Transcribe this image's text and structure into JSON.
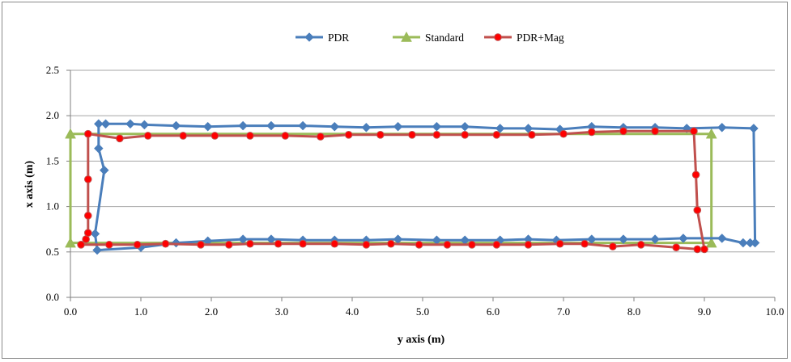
{
  "chart_data": {
    "type": "line",
    "xlabel": "y axis (m)",
    "ylabel": "x axis (m)",
    "xlim": [
      0,
      10
    ],
    "ylim": [
      0,
      2.5
    ],
    "xticks": [
      "0.0",
      "1.0",
      "2.0",
      "3.0",
      "4.0",
      "5.0",
      "6.0",
      "7.0",
      "8.0",
      "9.0",
      "10.0"
    ],
    "yticks": [
      "0.0",
      "0.5",
      "1.0",
      "1.5",
      "2.0",
      "2.5"
    ],
    "grid": "horizontal",
    "legend_position": "top-center",
    "series": [
      {
        "name": "PDR",
        "color": "#4a7ebb",
        "marker": "diamond",
        "points": [
          [
            0.38,
            0.52
          ],
          [
            1.0,
            0.55
          ],
          [
            1.5,
            0.6
          ],
          [
            1.95,
            0.62
          ],
          [
            2.45,
            0.64
          ],
          [
            2.85,
            0.64
          ],
          [
            3.3,
            0.63
          ],
          [
            3.75,
            0.63
          ],
          [
            4.2,
            0.63
          ],
          [
            4.65,
            0.64
          ],
          [
            5.2,
            0.63
          ],
          [
            5.6,
            0.63
          ],
          [
            6.1,
            0.63
          ],
          [
            6.5,
            0.64
          ],
          [
            6.9,
            0.63
          ],
          [
            7.4,
            0.64
          ],
          [
            7.85,
            0.64
          ],
          [
            8.3,
            0.64
          ],
          [
            8.7,
            0.65
          ],
          [
            9.25,
            0.65
          ],
          [
            9.55,
            0.6
          ],
          [
            9.65,
            0.6
          ],
          [
            9.72,
            0.6
          ],
          [
            9.7,
            1.86
          ],
          [
            9.25,
            1.87
          ],
          [
            8.75,
            1.86
          ],
          [
            8.3,
            1.87
          ],
          [
            7.85,
            1.87
          ],
          [
            7.4,
            1.88
          ],
          [
            6.95,
            1.85
          ],
          [
            6.5,
            1.86
          ],
          [
            6.1,
            1.86
          ],
          [
            5.6,
            1.88
          ],
          [
            5.2,
            1.88
          ],
          [
            4.65,
            1.88
          ],
          [
            4.2,
            1.87
          ],
          [
            3.75,
            1.88
          ],
          [
            3.3,
            1.89
          ],
          [
            2.85,
            1.89
          ],
          [
            2.45,
            1.89
          ],
          [
            1.95,
            1.88
          ],
          [
            1.5,
            1.89
          ],
          [
            1.05,
            1.9
          ],
          [
            0.85,
            1.91
          ],
          [
            0.5,
            1.91
          ],
          [
            0.4,
            1.91
          ],
          [
            0.4,
            1.64
          ],
          [
            0.48,
            1.4
          ],
          [
            0.35,
            0.7
          ],
          [
            0.38,
            0.52
          ]
        ]
      },
      {
        "name": "Standard",
        "color": "#9bbb59",
        "marker": "triangle",
        "points": [
          [
            0.0,
            0.6
          ],
          [
            9.1,
            0.6
          ],
          [
            9.1,
            1.8
          ],
          [
            0.0,
            1.8
          ],
          [
            0.0,
            0.6
          ]
        ]
      },
      {
        "name": "PDR+Mag",
        "color": "#c0504d",
        "marker": "circle",
        "points": [
          [
            0.15,
            0.58
          ],
          [
            0.22,
            0.64
          ],
          [
            0.25,
            0.71
          ],
          [
            0.25,
            0.9
          ],
          [
            0.25,
            1.3
          ],
          [
            0.25,
            1.8
          ],
          [
            0.7,
            1.75
          ],
          [
            1.1,
            1.78
          ],
          [
            1.6,
            1.78
          ],
          [
            2.05,
            1.78
          ],
          [
            2.55,
            1.78
          ],
          [
            3.05,
            1.78
          ],
          [
            3.55,
            1.77
          ],
          [
            3.95,
            1.79
          ],
          [
            4.4,
            1.79
          ],
          [
            4.85,
            1.79
          ],
          [
            5.2,
            1.79
          ],
          [
            5.6,
            1.79
          ],
          [
            6.05,
            1.79
          ],
          [
            6.55,
            1.79
          ],
          [
            7.0,
            1.8
          ],
          [
            7.4,
            1.82
          ],
          [
            7.85,
            1.83
          ],
          [
            8.3,
            1.83
          ],
          [
            8.85,
            1.83
          ],
          [
            8.88,
            1.35
          ],
          [
            8.9,
            0.96
          ],
          [
            9.0,
            0.53
          ],
          [
            8.9,
            0.53
          ],
          [
            8.6,
            0.55
          ],
          [
            8.1,
            0.58
          ],
          [
            7.7,
            0.56
          ],
          [
            7.3,
            0.59
          ],
          [
            6.95,
            0.59
          ],
          [
            6.5,
            0.58
          ],
          [
            6.05,
            0.58
          ],
          [
            5.7,
            0.58
          ],
          [
            5.35,
            0.58
          ],
          [
            4.95,
            0.58
          ],
          [
            4.55,
            0.59
          ],
          [
            4.2,
            0.58
          ],
          [
            3.75,
            0.59
          ],
          [
            3.3,
            0.59
          ],
          [
            2.95,
            0.59
          ],
          [
            2.55,
            0.59
          ],
          [
            2.25,
            0.58
          ],
          [
            1.85,
            0.58
          ],
          [
            1.35,
            0.59
          ],
          [
            0.95,
            0.58
          ],
          [
            0.55,
            0.58
          ],
          [
            0.15,
            0.58
          ]
        ]
      }
    ]
  }
}
